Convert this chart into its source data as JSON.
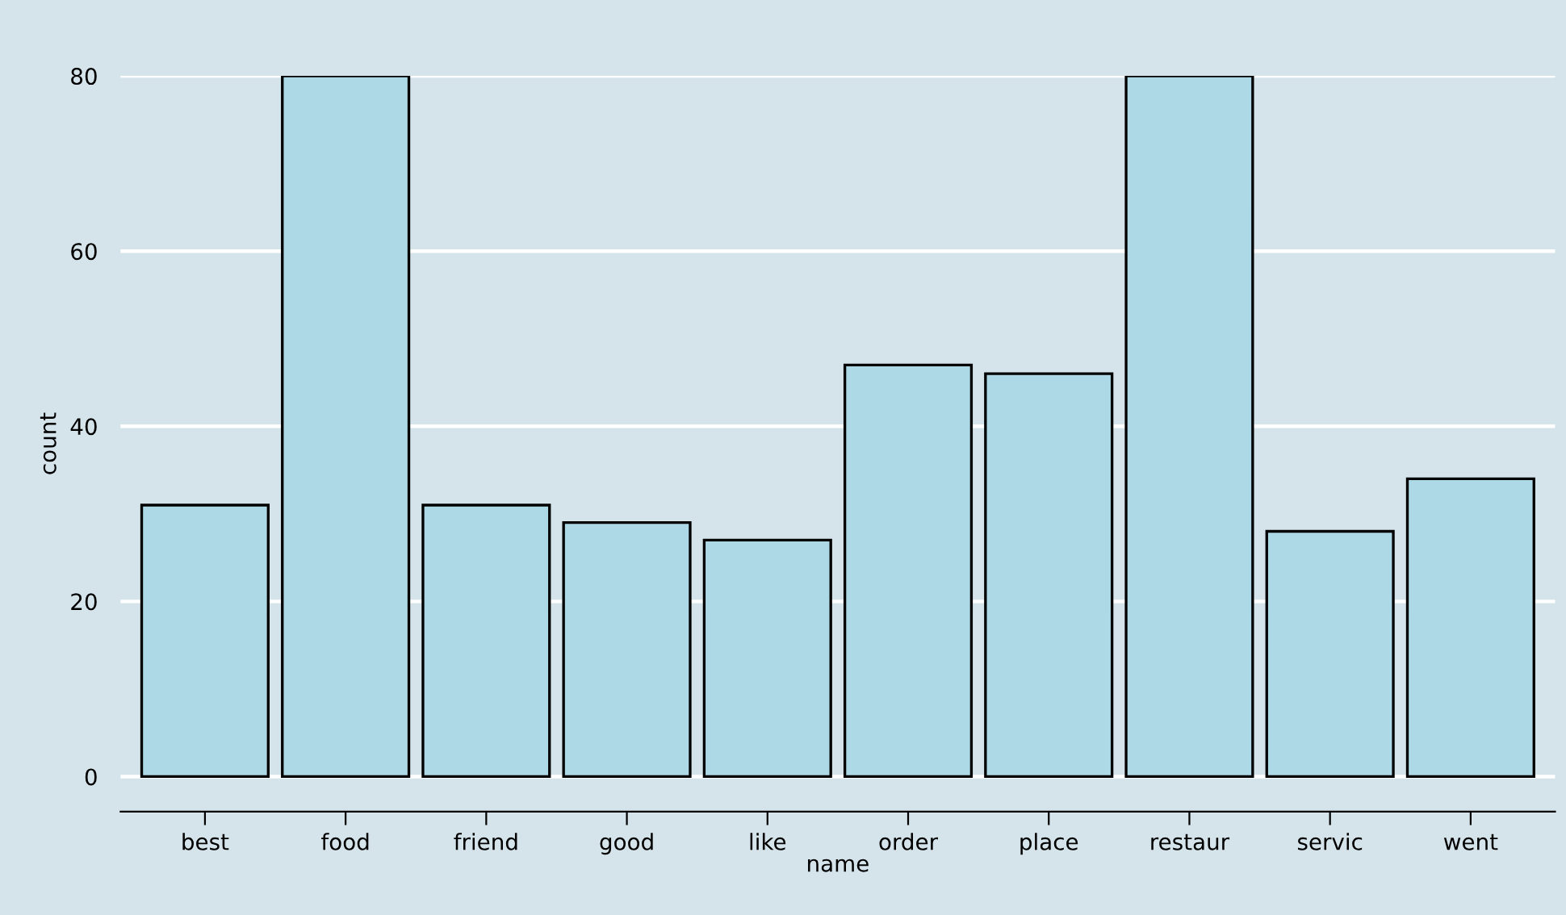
{
  "chart_data": {
    "type": "bar",
    "xlabel": "name",
    "ylabel": "count",
    "categories": [
      "best",
      "food",
      "friend",
      "good",
      "like",
      "order",
      "place",
      "restaur",
      "servic",
      "went"
    ],
    "values": [
      31,
      80,
      31,
      29,
      27,
      47,
      46,
      80,
      28,
      34
    ],
    "color": "#add8e6",
    "ylim": [
      -4,
      80
    ],
    "yticks": [
      0,
      20,
      40,
      60,
      80
    ],
    "grid": "y"
  }
}
